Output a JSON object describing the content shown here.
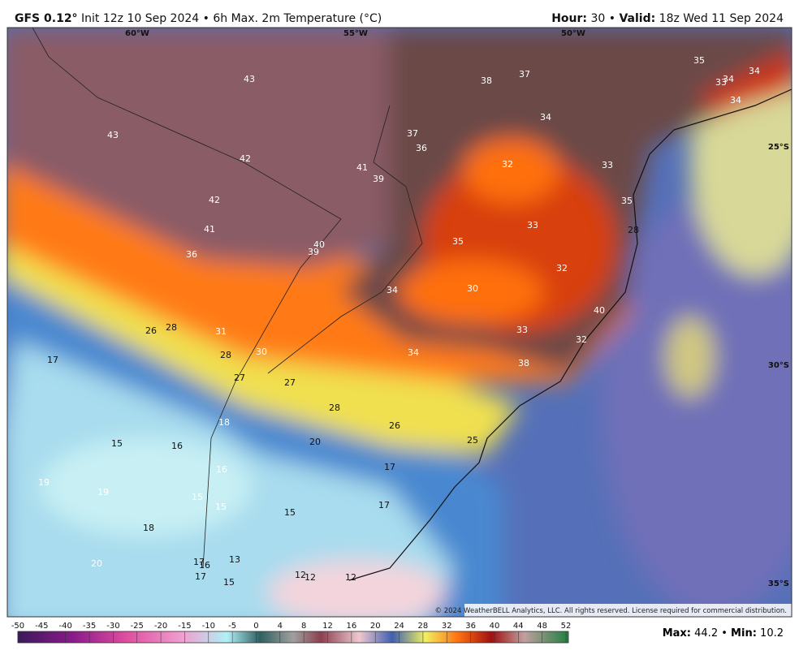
{
  "header": {
    "model": "GFS 0.12°",
    "description": "Init 12z 10 Sep 2024 • 6h Max. 2m Temperature (°C)",
    "separator": "•",
    "hour_label": "Hour:",
    "hour": "30",
    "valid_label": "Valid:",
    "valid": "18z Wed 11 Sep 2024"
  },
  "map": {
    "longitudes": [
      "60°W",
      "55°W",
      "50°W"
    ],
    "latitudes": [
      "25°S",
      "30°S",
      "35°S"
    ],
    "labels": [
      "43",
      "43",
      "42",
      "42",
      "41",
      "41",
      "39",
      "36",
      "40",
      "39",
      "38",
      "37",
      "37",
      "36",
      "35",
      "33",
      "34",
      "34",
      "34",
      "34",
      "32",
      "33",
      "35",
      "33",
      "28",
      "35",
      "32",
      "34",
      "30",
      "40",
      "33",
      "32",
      "34",
      "38",
      "26",
      "28",
      "31",
      "28",
      "30",
      "27",
      "27",
      "28",
      "26",
      "25",
      "17",
      "18",
      "20",
      "15",
      "16",
      "16",
      "17",
      "19",
      "19",
      "15",
      "15",
      "15",
      "17",
      "18",
      "20",
      "17",
      "16",
      "13",
      "17",
      "15",
      "12",
      "12",
      "12"
    ],
    "copyright": "© 2024 WeatherBELL Analytics, LLC. All rights reserved. License required for commercial distribution."
  },
  "colorbar": {
    "ticks": [
      -50,
      -45,
      -40,
      -35,
      -30,
      -25,
      -20,
      -15,
      -10,
      -5,
      0,
      4,
      8,
      12,
      16,
      20,
      24,
      28,
      32,
      36,
      40,
      44,
      48,
      52
    ]
  },
  "footer": {
    "max_label": "Max:",
    "max": "44.2",
    "min_label": "Min:",
    "min": "10.2"
  }
}
